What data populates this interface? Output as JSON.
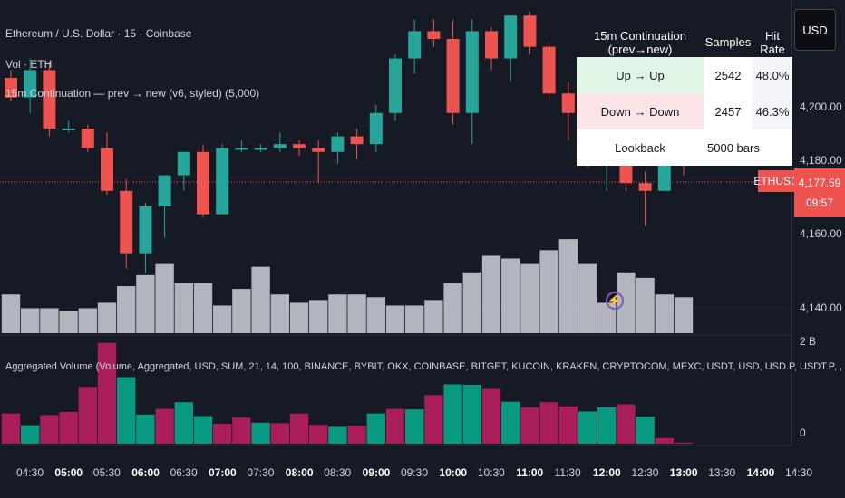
{
  "header": {
    "symbol_line": "Ethereum / U.S. Dollar · 15 · Coinbase",
    "vol_line": "Vol · ETH",
    "indicator_line": "15m Continuation — prev → new (v6, styled) (5,000)"
  },
  "currency_button": "USD",
  "price_axis": {
    "ticks": [
      "4,200.00",
      "4,180.00",
      "4,160.00",
      "4,140.00"
    ],
    "current_price": "4,177.59",
    "countdown": "09:57",
    "symbol_tag": "ETHUSD"
  },
  "volume_axis": {
    "ticks": [
      "2 B",
      "0"
    ]
  },
  "stats_table": {
    "headers": [
      "15m Continuation (prev→new)",
      "Samples",
      "Hit Rate"
    ],
    "rows": [
      {
        "label": "Up → Up",
        "samples": "2542",
        "hit_rate": "48.0%"
      },
      {
        "label": "Down → Down",
        "samples": "2457",
        "hit_rate": "46.3%"
      },
      {
        "label": "Lookback",
        "samples": "5000 bars",
        "hit_rate": ""
      }
    ]
  },
  "agg_volume_label": "Aggregated Volume (Volume, Aggregated, USD, SUM, 21, 14, 100, BINANCE, BYBIT, OKX, COINBASE, BITGET, KUCOIN, KRAKEN, CRYPTOCOM, MEXC, USDT, USD, USD.P, USDT.P, , )",
  "time_axis": {
    "ticks": [
      {
        "label": "04:30",
        "bold": false
      },
      {
        "label": "05:00",
        "bold": true
      },
      {
        "label": "05:30",
        "bold": false
      },
      {
        "label": "06:00",
        "bold": true
      },
      {
        "label": "06:30",
        "bold": false
      },
      {
        "label": "07:00",
        "bold": true
      },
      {
        "label": "07:30",
        "bold": false
      },
      {
        "label": "08:00",
        "bold": true
      },
      {
        "label": "08:30",
        "bold": false
      },
      {
        "label": "09:00",
        "bold": true
      },
      {
        "label": "09:30",
        "bold": false
      },
      {
        "label": "10:00",
        "bold": true
      },
      {
        "label": "10:30",
        "bold": false
      },
      {
        "label": "11:00",
        "bold": true
      },
      {
        "label": "11:30",
        "bold": false
      },
      {
        "label": "12:00",
        "bold": true
      },
      {
        "label": "12:30",
        "bold": false
      },
      {
        "label": "13:00",
        "bold": true
      },
      {
        "label": "13:30",
        "bold": false
      },
      {
        "label": "14:00",
        "bold": true
      },
      {
        "label": "14:30",
        "bold": false
      }
    ]
  },
  "colors": {
    "up": "#26a69a",
    "down": "#ef5350",
    "volume_bar": "#b2b5be",
    "agg_up": "#089981",
    "agg_down": "#a81d5a",
    "background": "#161a25"
  },
  "chart_data": {
    "type": "candlestick",
    "interval": "15",
    "ylim": [
      4133,
      4219
    ],
    "candles": [
      {
        "o": 4199,
        "h": 4201,
        "l": 4193,
        "c": 4194
      },
      {
        "o": 4194,
        "h": 4204,
        "l": 4190,
        "c": 4201
      },
      {
        "o": 4201,
        "h": 4203,
        "l": 4184,
        "c": 4186
      },
      {
        "o": 4186,
        "h": 4188,
        "l": 4185,
        "c": 4186
      },
      {
        "o": 4186,
        "h": 4187,
        "l": 4180,
        "c": 4181
      },
      {
        "o": 4181,
        "h": 4185,
        "l": 4169,
        "c": 4170
      },
      {
        "o": 4170,
        "h": 4173,
        "l": 4150,
        "c": 4154
      },
      {
        "o": 4154,
        "h": 4167,
        "l": 4149,
        "c": 4166
      },
      {
        "o": 4166,
        "h": 4174,
        "l": 4158,
        "c": 4174
      },
      {
        "o": 4174,
        "h": 4180,
        "l": 4170,
        "c": 4180
      },
      {
        "o": 4180,
        "h": 4182,
        "l": 4163,
        "c": 4164
      },
      {
        "o": 4164,
        "h": 4182,
        "l": 4164,
        "c": 4181
      },
      {
        "o": 4181,
        "h": 4183,
        "l": 4180,
        "c": 4181
      },
      {
        "o": 4181,
        "h": 4182,
        "l": 4180,
        "c": 4181
      },
      {
        "o": 4181,
        "h": 4185,
        "l": 4180,
        "c": 4182
      },
      {
        "o": 4182,
        "h": 4183,
        "l": 4179,
        "c": 4181
      },
      {
        "o": 4181,
        "h": 4183,
        "l": 4172,
        "c": 4180
      },
      {
        "o": 4180,
        "h": 4185,
        "l": 4177,
        "c": 4184
      },
      {
        "o": 4184,
        "h": 4186,
        "l": 4178,
        "c": 4182
      },
      {
        "o": 4182,
        "h": 4192,
        "l": 4180,
        "c": 4190
      },
      {
        "o": 4190,
        "h": 4205,
        "l": 4188,
        "c": 4204
      },
      {
        "o": 4204,
        "h": 4214,
        "l": 4200,
        "c": 4211
      },
      {
        "o": 4211,
        "h": 4214,
        "l": 4207,
        "c": 4209
      },
      {
        "o": 4209,
        "h": 4214,
        "l": 4187,
        "c": 4190
      },
      {
        "o": 4190,
        "h": 4214,
        "l": 4182,
        "c": 4211
      },
      {
        "o": 4211,
        "h": 4212,
        "l": 4201,
        "c": 4204
      },
      {
        "o": 4204,
        "h": 4215,
        "l": 4198,
        "c": 4215
      },
      {
        "o": 4215,
        "h": 4216,
        "l": 4205,
        "c": 4207
      },
      {
        "o": 4207,
        "h": 4208,
        "l": 4193,
        "c": 4195
      },
      {
        "o": 4195,
        "h": 4198,
        "l": 4183,
        "c": 4190
      },
      {
        "o": 4190,
        "h": 4192,
        "l": 4176,
        "c": 4178
      },
      {
        "o": 4178,
        "h": 4181,
        "l": 4170,
        "c": 4178
      },
      {
        "o": 4178,
        "h": 4179,
        "l": 4170,
        "c": 4172
      },
      {
        "o": 4172,
        "h": 4175,
        "l": 4161,
        "c": 4170
      },
      {
        "o": 4170,
        "h": 4183,
        "l": 4170,
        "c": 4181
      },
      {
        "o": 4181,
        "h": 4183,
        "l": 4174,
        "c": 4177.59
      }
    ],
    "volume": [
      14,
      9,
      9,
      8,
      9,
      11,
      17,
      21,
      25,
      18,
      18,
      10,
      16,
      24,
      14,
      11,
      12,
      14,
      14,
      13,
      10,
      10,
      12,
      18,
      22,
      28,
      27,
      25,
      30,
      34,
      25,
      11,
      22,
      20,
      14,
      13
    ],
    "volume_max": 36,
    "agg_volume": [
      {
        "v": 0.59,
        "up": false
      },
      {
        "v": 0.36,
        "up": true
      },
      {
        "v": 0.56,
        "up": false
      },
      {
        "v": 0.62,
        "up": false
      },
      {
        "v": 1.11,
        "up": false
      },
      {
        "v": 1.97,
        "up": false
      },
      {
        "v": 1.3,
        "up": true
      },
      {
        "v": 0.57,
        "up": true
      },
      {
        "v": 0.68,
        "up": false
      },
      {
        "v": 0.81,
        "up": true
      },
      {
        "v": 0.54,
        "up": true
      },
      {
        "v": 0.39,
        "up": false
      },
      {
        "v": 0.51,
        "up": false
      },
      {
        "v": 0.41,
        "up": true
      },
      {
        "v": 0.4,
        "up": false
      },
      {
        "v": 0.59,
        "up": false
      },
      {
        "v": 0.37,
        "up": false
      },
      {
        "v": 0.33,
        "up": true
      },
      {
        "v": 0.35,
        "up": false
      },
      {
        "v": 0.59,
        "up": true
      },
      {
        "v": 0.68,
        "up": false
      },
      {
        "v": 0.67,
        "up": true
      },
      {
        "v": 0.95,
        "up": false
      },
      {
        "v": 1.16,
        "up": true
      },
      {
        "v": 1.15,
        "up": true
      },
      {
        "v": 1.07,
        "up": false
      },
      {
        "v": 0.82,
        "up": true
      },
      {
        "v": 0.71,
        "up": false
      },
      {
        "v": 0.81,
        "up": false
      },
      {
        "v": 0.73,
        "up": false
      },
      {
        "v": 0.63,
        "up": true
      },
      {
        "v": 0.71,
        "up": true
      },
      {
        "v": 0.77,
        "up": false
      },
      {
        "v": 0.53,
        "up": true
      },
      {
        "v": 0.11,
        "up": false
      },
      {
        "v": 0.02,
        "up": false
      }
    ],
    "agg_ylim": [
      0,
      2
    ]
  }
}
